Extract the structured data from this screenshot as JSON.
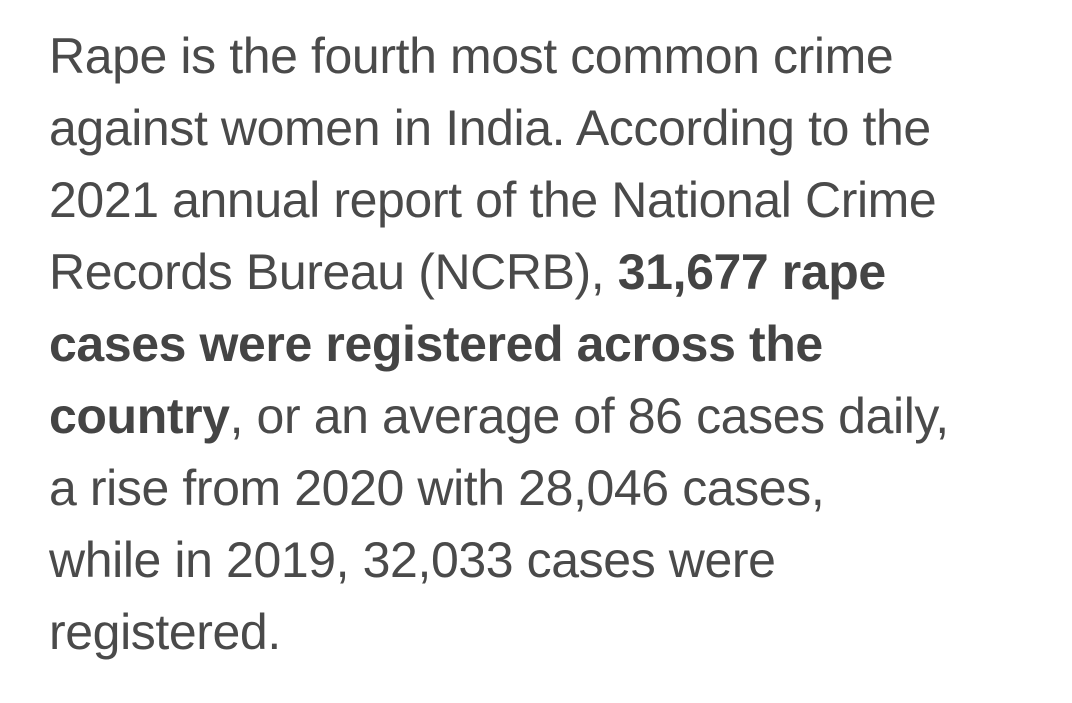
{
  "article": {
    "lines": [
      [
        {
          "text": "Rape is the fourth most common crime",
          "bold": false
        }
      ],
      [
        {
          "text": "against women in India. According to the",
          "bold": false
        }
      ],
      [
        {
          "text": "2021 annual report of the National Crime",
          "bold": false
        }
      ],
      [
        {
          "text": "Records Bureau (NCRB), ",
          "bold": false
        },
        {
          "text": "31,677 rape",
          "bold": true
        }
      ],
      [
        {
          "text": "cases were registered across the",
          "bold": true
        }
      ],
      [
        {
          "text": "country",
          "bold": true
        },
        {
          "text": ", or an average of 86 cases daily,",
          "bold": false
        }
      ],
      [
        {
          "text": "a rise from 2020 with 28,046 cases,",
          "bold": false
        }
      ],
      [
        {
          "text": "while in 2019, 32,033 cases were",
          "bold": false
        }
      ],
      [
        {
          "text": "registered.",
          "bold": false
        }
      ]
    ]
  }
}
